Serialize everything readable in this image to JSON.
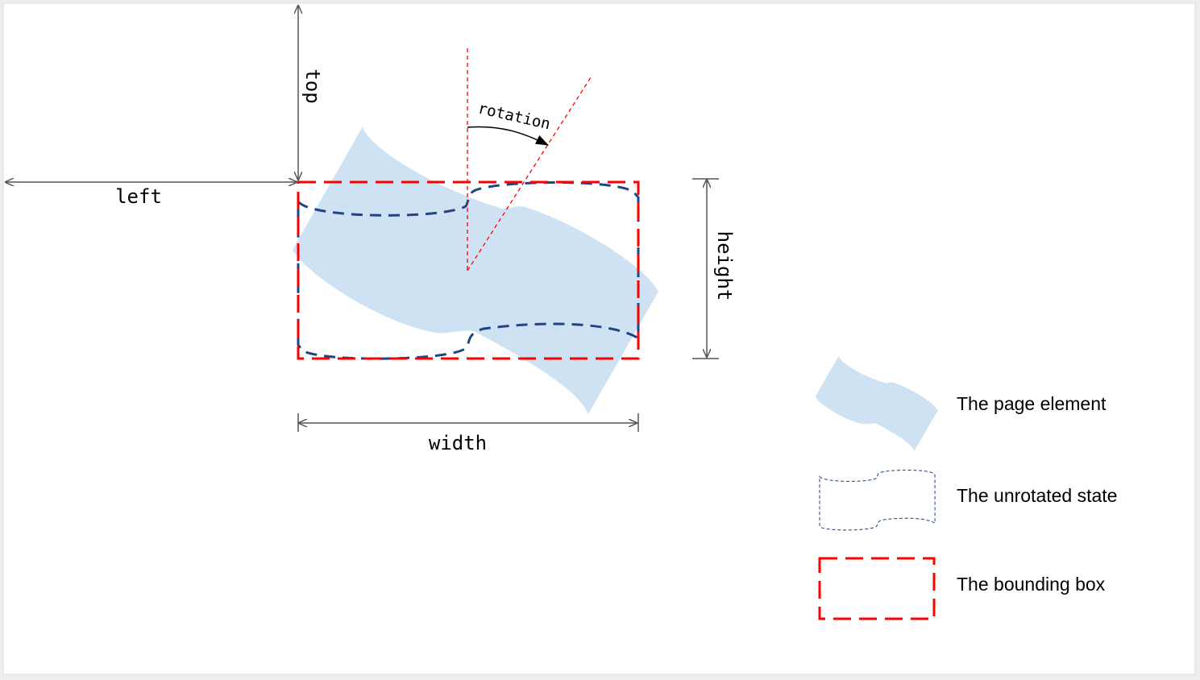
{
  "colors": {
    "page_element": "#cfe2f3",
    "unrotated_state": "#1f4585",
    "bounding_box": "#ff0000",
    "dimension_arrows": "#555555"
  },
  "labels": {
    "left": "left",
    "top": "top",
    "width": "width",
    "height": "height",
    "rotation": "rotation"
  },
  "legend": {
    "items": [
      {
        "label": "The page element"
      },
      {
        "label": "The unrotated state"
      },
      {
        "label": "The bounding box"
      }
    ]
  }
}
